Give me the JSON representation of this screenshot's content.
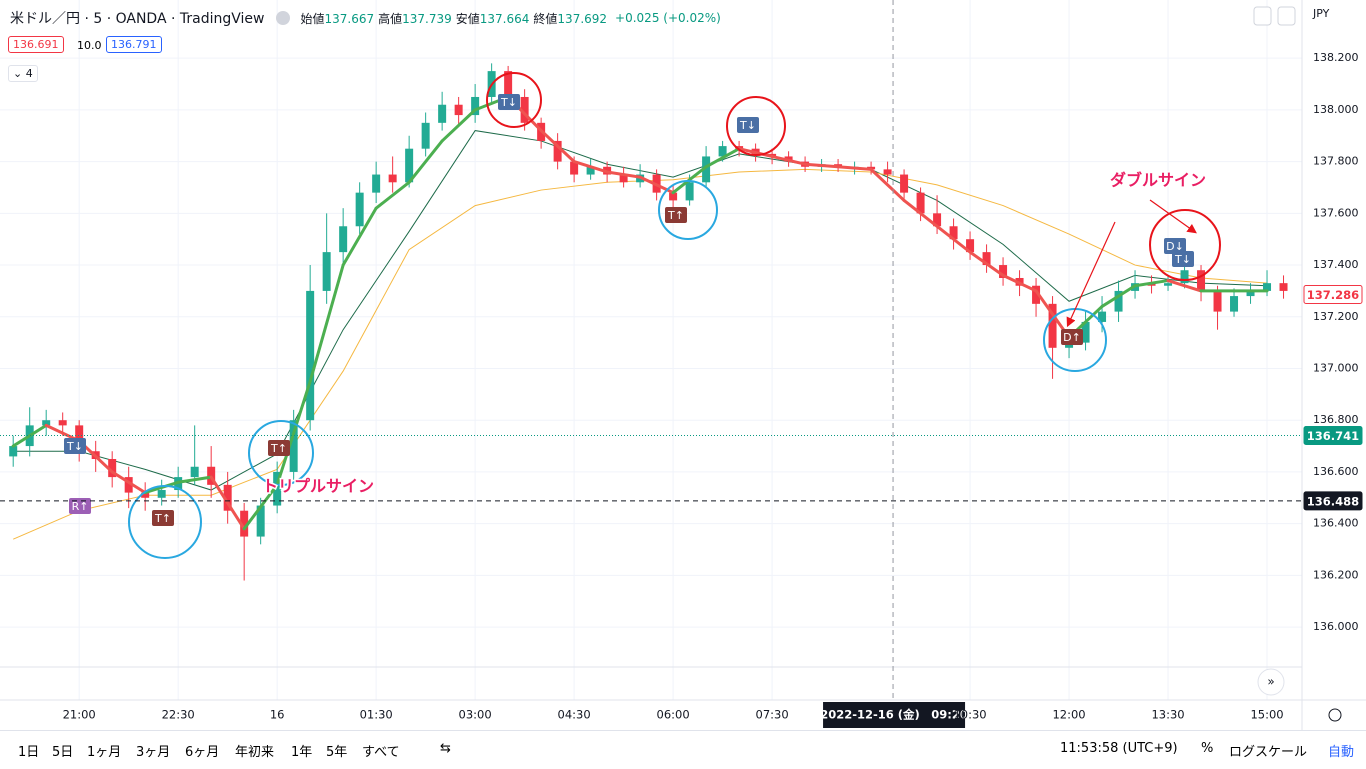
{
  "header": {
    "symbol": "米ドル／円 · 5 · OANDA · TradingView",
    "ohlc": [
      {
        "label": "始値",
        "value": "137.667"
      },
      {
        "label": "高値",
        "value": "137.739"
      },
      {
        "label": "安値",
        "value": "137.664"
      },
      {
        "label": "終値",
        "value": "137.692"
      }
    ],
    "change": "+0.025 (+0.02%)",
    "bid": "136.691",
    "spread": "10.0",
    "ask": "136.791",
    "indicators": "4",
    "currency": "JPY"
  },
  "chart_data": {
    "type": "candlestick",
    "x": [
      -4,
      -3.75,
      -3.5,
      -3.25,
      -3,
      -2.75,
      -2.5,
      -2.25,
      -2,
      -1.75,
      -1.5,
      -1.25,
      -1,
      -0.75,
      -0.5,
      -0.25,
      0,
      0.25,
      0.5,
      0.75,
      1,
      1.25,
      1.5,
      1.75,
      2,
      2.25,
      2.5,
      2.75,
      3,
      3.25,
      3.5,
      3.75,
      4,
      4.25,
      4.5,
      4.75,
      5,
      5.25,
      5.5,
      5.75,
      6,
      6.25,
      6.5,
      6.75,
      7,
      7.25,
      7.5,
      7.75,
      8,
      8.25,
      8.5,
      8.75,
      9,
      9.25,
      9.5,
      9.75,
      10,
      10.25,
      10.5,
      10.75,
      11,
      11.25,
      11.5,
      11.75,
      12,
      12.25,
      12.5,
      12.75,
      13,
      13.25,
      13.5,
      13.75,
      14,
      14.25,
      14.5,
      14.75,
      15,
      15.25
    ],
    "open": [
      136.66,
      136.7,
      136.78,
      136.8,
      136.78,
      136.68,
      136.65,
      136.58,
      136.52,
      136.5,
      136.53,
      136.58,
      136.62,
      136.55,
      136.45,
      136.35,
      136.47,
      136.6,
      136.8,
      137.3,
      137.45,
      137.55,
      137.68,
      137.75,
      137.72,
      137.85,
      137.95,
      138.02,
      137.98,
      138.05,
      138.15,
      138.05,
      137.95,
      137.88,
      137.8,
      137.75,
      137.78,
      137.75,
      137.72,
      137.75,
      137.68,
      137.65,
      137.72,
      137.82,
      137.86,
      137.85,
      137.83,
      137.82,
      137.8,
      137.78,
      137.79,
      137.78,
      137.78,
      137.77,
      137.75,
      137.68,
      137.6,
      137.55,
      137.5,
      137.45,
      137.4,
      137.35,
      137.32,
      137.25,
      137.08,
      137.1,
      137.18,
      137.22,
      137.3,
      137.33,
      137.32,
      137.33,
      137.38,
      137.3,
      137.22,
      137.28,
      137.3,
      137.33
    ],
    "high": [
      136.74,
      136.85,
      136.84,
      136.83,
      136.8,
      136.72,
      136.68,
      136.62,
      136.56,
      136.57,
      136.62,
      136.78,
      136.7,
      136.6,
      136.48,
      136.5,
      136.64,
      136.84,
      137.4,
      137.6,
      137.62,
      137.72,
      137.8,
      137.82,
      137.9,
      137.99,
      138.07,
      138.05,
      138.1,
      138.18,
      138.17,
      138.08,
      137.97,
      137.91,
      137.82,
      137.81,
      137.8,
      137.78,
      137.79,
      137.77,
      137.71,
      137.75,
      137.86,
      137.88,
      137.88,
      137.87,
      137.85,
      137.84,
      137.82,
      137.81,
      137.81,
      137.8,
      137.8,
      137.8,
      137.77,
      137.7,
      137.67,
      137.58,
      137.53,
      137.48,
      137.43,
      137.38,
      137.35,
      137.28,
      137.14,
      137.22,
      137.28,
      137.34,
      137.38,
      137.36,
      137.36,
      137.41,
      137.4,
      137.32,
      137.31,
      137.33,
      137.38,
      137.36
    ],
    "low": [
      136.62,
      136.66,
      136.74,
      136.74,
      136.64,
      136.6,
      136.54,
      136.46,
      136.45,
      136.47,
      136.5,
      136.55,
      136.5,
      136.4,
      136.18,
      136.32,
      136.44,
      136.57,
      136.76,
      137.25,
      137.4,
      137.52,
      137.64,
      137.68,
      137.7,
      137.82,
      137.92,
      137.94,
      137.95,
      138.02,
      138.0,
      137.92,
      137.85,
      137.77,
      137.72,
      137.73,
      137.72,
      137.7,
      137.7,
      137.65,
      137.62,
      137.63,
      137.7,
      137.8,
      137.82,
      137.8,
      137.79,
      137.78,
      137.76,
      137.76,
      137.76,
      137.75,
      137.75,
      137.72,
      137.65,
      137.57,
      137.52,
      137.46,
      137.42,
      137.37,
      137.32,
      137.28,
      137.2,
      136.96,
      137.04,
      137.07,
      137.14,
      137.18,
      137.27,
      137.29,
      137.3,
      137.31,
      137.26,
      137.15,
      137.2,
      137.25,
      137.28,
      137.27
    ],
    "close": [
      136.7,
      136.78,
      136.8,
      136.78,
      136.68,
      136.65,
      136.58,
      136.52,
      136.5,
      136.53,
      136.58,
      136.62,
      136.55,
      136.45,
      136.35,
      136.47,
      136.6,
      136.8,
      137.3,
      137.45,
      137.55,
      137.68,
      137.75,
      137.72,
      137.85,
      137.95,
      138.02,
      137.98,
      138.05,
      138.15,
      138.05,
      137.95,
      137.88,
      137.8,
      137.75,
      137.78,
      137.75,
      137.72,
      137.75,
      137.68,
      137.65,
      137.72,
      137.82,
      137.86,
      137.85,
      137.83,
      137.82,
      137.8,
      137.78,
      137.79,
      137.78,
      137.78,
      137.77,
      137.75,
      137.68,
      137.6,
      137.55,
      137.5,
      137.45,
      137.4,
      137.35,
      137.32,
      137.25,
      137.08,
      137.1,
      137.18,
      137.22,
      137.3,
      137.33,
      137.32,
      137.33,
      137.38,
      137.3,
      137.22,
      137.28,
      137.3,
      137.33,
      137.3
    ],
    "up_color": "#22ab94",
    "down_color": "#f23645",
    "lines": [
      {
        "color": "#1e6b4a",
        "width": 1,
        "x": [
          -4,
          -3,
          -2,
          -1,
          0,
          1,
          2,
          3,
          4,
          5,
          6,
          7,
          8,
          9,
          10,
          11,
          12,
          13,
          14,
          15
        ],
        "values": [
          136.68,
          136.68,
          136.61,
          136.53,
          136.67,
          137.15,
          137.53,
          137.92,
          137.88,
          137.79,
          137.74,
          137.83,
          137.79,
          137.77,
          137.65,
          137.48,
          137.26,
          137.36,
          137.33,
          137.32
        ]
      },
      {
        "color": "#f5b841",
        "width": 1,
        "x": [
          -4,
          -3,
          -2,
          -1,
          0,
          1,
          2,
          3,
          4,
          5,
          6,
          7,
          8,
          9,
          10,
          11,
          12,
          13,
          14,
          15
        ],
        "values": [
          136.34,
          136.45,
          136.51,
          136.51,
          136.61,
          136.99,
          137.46,
          137.63,
          137.69,
          137.72,
          137.73,
          137.76,
          137.77,
          137.76,
          137.71,
          137.63,
          137.52,
          137.4,
          137.35,
          137.33
        ]
      }
    ],
    "trend_line": {
      "up_color": "#4caf50",
      "down_color": "#ef5350",
      "x": [
        -4,
        -3.5,
        -3,
        -2.5,
        -2,
        -1.5,
        -1,
        -0.5,
        0,
        0.5,
        1,
        1.5,
        2,
        2.5,
        3,
        3.5,
        4,
        4.5,
        5,
        5.5,
        6,
        6.5,
        7,
        7.5,
        8,
        8.5,
        9,
        9.5,
        10,
        10.5,
        11,
        11.5,
        12,
        12.5,
        13,
        13.5,
        14,
        14.5,
        15
      ],
      "values": [
        136.7,
        136.78,
        136.72,
        136.6,
        136.52,
        136.56,
        136.58,
        136.38,
        136.55,
        136.95,
        137.4,
        137.62,
        137.72,
        137.88,
        138.0,
        138.05,
        137.92,
        137.8,
        137.76,
        137.74,
        137.68,
        137.78,
        137.85,
        137.82,
        137.79,
        137.78,
        137.77,
        137.65,
        137.55,
        137.45,
        137.36,
        137.3,
        137.12,
        137.24,
        137.32,
        137.34,
        137.3,
        137.3,
        137.3
      ]
    },
    "ylim": [
      135.718,
      138.425
    ],
    "yticks": [
      {
        "value": 136,
        "label": "136.000"
      },
      {
        "value": 136.2,
        "label": "136.200"
      },
      {
        "value": 136.4,
        "label": "136.400"
      },
      {
        "value": 136.6,
        "label": "136.600"
      },
      {
        "value": 136.8,
        "label": "136.800"
      },
      {
        "value": 137,
        "label": "137.000"
      },
      {
        "value": 137.2,
        "label": "137.200"
      },
      {
        "value": 137.4,
        "label": "137.400"
      },
      {
        "value": 137.6,
        "label": "137.600"
      },
      {
        "value": 137.8,
        "label": "137.800"
      },
      {
        "value": 138,
        "label": "138.000"
      },
      {
        "value": 138.2,
        "label": "138.200"
      }
    ],
    "xlim": [
      -4.2,
      15.53
    ],
    "xticks": [
      {
        "value": -3,
        "label": "21:00"
      },
      {
        "value": -1.5,
        "label": "22:30"
      },
      {
        "value": 0,
        "label": "16"
      },
      {
        "value": 1.5,
        "label": "01:30"
      },
      {
        "value": 3,
        "label": "03:00"
      },
      {
        "value": 4.5,
        "label": "04:30"
      },
      {
        "value": 6,
        "label": "06:00"
      },
      {
        "value": 7.5,
        "label": "07:30"
      },
      {
        "value": 10.5,
        "label": "10:30"
      },
      {
        "value": 12,
        "label": "12:00"
      },
      {
        "value": 13.5,
        "label": "13:30"
      },
      {
        "value": 15,
        "label": "15:00"
      }
    ],
    "grid": true,
    "price_lines": [
      {
        "value": 137.286,
        "color": "#f23645",
        "style": "none"
      },
      {
        "value": 136.741,
        "color": "#089981",
        "style": "dotted"
      },
      {
        "value": 136.488,
        "color": "#131722",
        "style": "dashed"
      }
    ],
    "crosshair": {
      "x": 9.333,
      "label": "2022-12-16 (金)　09:20"
    },
    "signals": [
      "R↑",
      "T↓",
      "T↑",
      "T↑",
      "T↓",
      "T↑",
      "T↓",
      "D↑",
      "D↓",
      "T↓"
    ],
    "annotations": [
      "トリプルサイン",
      "ダブルサイン"
    ]
  },
  "toolbar": {
    "ranges": [
      "1日",
      "5日",
      "1ヶ月",
      "3ヶ月",
      "6ヶ月",
      "年初来",
      "1年",
      "5年",
      "すべて"
    ],
    "clock": "11:53:58 (UTC+9)",
    "percent": "%",
    "log": "ログスケール",
    "auto": "自動"
  }
}
